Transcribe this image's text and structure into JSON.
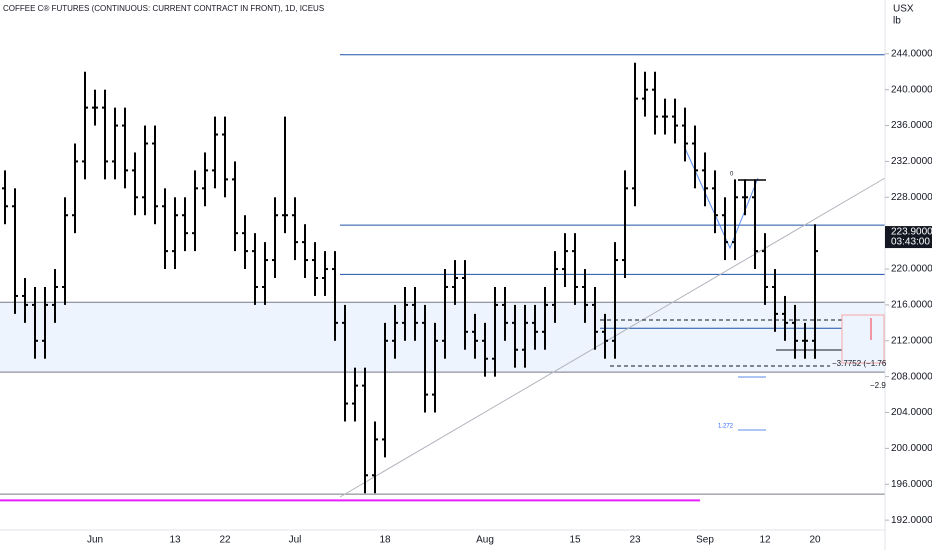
{
  "chart_data": {
    "type": "ohlc",
    "title": "COFFEE C® FUTURES (CONTINUOUS: CURRENT CONTRACT IN FRONT), 1D, ICEUS",
    "unit_top": "USX",
    "unit_bottom": "lb",
    "categories": [
      null,
      null,
      null,
      null,
      null,
      null,
      null,
      null,
      null,
      "Jun",
      null,
      null,
      null,
      null,
      null,
      null,
      null,
      "13",
      null,
      null,
      null,
      null,
      "22",
      null,
      null,
      null,
      null,
      null,
      null,
      "Jul",
      null,
      null,
      null,
      null,
      null,
      null,
      null,
      null,
      "18",
      null,
      null,
      null,
      null,
      null,
      null,
      null,
      null,
      null,
      "Aug",
      null,
      null,
      null,
      null,
      null,
      null,
      null,
      null,
      "15",
      null,
      null,
      null,
      null,
      null,
      "23",
      null,
      null,
      null,
      null,
      null,
      null,
      "Sep",
      null,
      null,
      null,
      null,
      null,
      "12",
      null,
      null,
      null,
      null,
      "20"
    ],
    "open": [
      229,
      227,
      217,
      216,
      212,
      216,
      218,
      226,
      232,
      238,
      238,
      232,
      236,
      231,
      228,
      234,
      227,
      222,
      226,
      224,
      229,
      231,
      235,
      230,
      224,
      222,
      218,
      221,
      226,
      226,
      223,
      221,
      219,
      220,
      214,
      205,
      207,
      197,
      201,
      212,
      214,
      216,
      214,
      206,
      212,
      218,
      219,
      213,
      212,
      210,
      216,
      214,
      211,
      214,
      213,
      216,
      220,
      222,
      218,
      216,
      213,
      212,
      221,
      229,
      239,
      240,
      237,
      237,
      236,
      234,
      231,
      229,
      226,
      223,
      228,
      228,
      222,
      218,
      215,
      214,
      212,
      212
    ],
    "high": [
      231,
      229,
      219,
      218,
      218,
      220,
      228,
      234,
      242,
      240,
      240,
      238,
      238,
      233,
      236,
      236,
      229,
      228,
      228,
      231,
      233,
      237,
      237,
      232,
      226,
      224,
      223,
      228,
      237,
      228,
      225,
      223,
      222,
      222,
      216,
      209,
      209,
      203,
      214,
      216,
      218,
      218,
      216,
      214,
      220,
      221,
      221,
      215,
      214,
      218,
      218,
      216,
      216,
      216,
      218,
      222,
      224,
      224,
      220,
      218,
      215,
      223,
      231,
      243,
      242,
      242,
      239,
      239,
      238,
      236,
      233,
      231,
      228,
      230,
      230,
      230,
      224,
      220,
      217,
      216,
      214,
      225
    ],
    "low": [
      225,
      215,
      214,
      210,
      210,
      214,
      216,
      224,
      230,
      236,
      230,
      230,
      229,
      226,
      226,
      225,
      220,
      220,
      222,
      222,
      227,
      229,
      228,
      222,
      220,
      216,
      216,
      219,
      224,
      221,
      219,
      217,
      217,
      212,
      203,
      203,
      195,
      195,
      199,
      210,
      212,
      212,
      204,
      204,
      210,
      216,
      211,
      210,
      208,
      208,
      212,
      209,
      209,
      211,
      211,
      214,
      218,
      216,
      214,
      211,
      210,
      210,
      219,
      227,
      237,
      235,
      235,
      234,
      232,
      229,
      227,
      224,
      221,
      221,
      226,
      220,
      216,
      213,
      212,
      210,
      210,
      210
    ],
    "close": [
      227,
      217,
      216,
      212,
      216,
      218,
      226,
      232,
      238,
      238,
      232,
      236,
      231,
      228,
      234,
      227,
      222,
      226,
      224,
      229,
      231,
      235,
      230,
      224,
      222,
      218,
      221,
      226,
      226,
      223,
      221,
      219,
      220,
      214,
      205,
      207,
      197,
      201,
      212,
      214,
      216,
      214,
      206,
      212,
      218,
      219,
      213,
      212,
      210,
      216,
      214,
      211,
      214,
      213,
      216,
      220,
      222,
      218,
      216,
      213,
      212,
      221,
      229,
      239,
      240,
      237,
      237,
      236,
      234,
      231,
      229,
      226,
      223,
      228,
      228,
      222,
      218,
      215,
      214,
      212,
      212,
      222
    ],
    "color": "#000000",
    "ylim": [
      190.9,
      250
    ],
    "yticks": [
      {
        "value": 192,
        "label": "192.0000"
      },
      {
        "value": 196,
        "label": "196.0000"
      },
      {
        "value": 200,
        "label": "200.0000"
      },
      {
        "value": 204,
        "label": "204.0000"
      },
      {
        "value": 208,
        "label": "208.0000"
      },
      {
        "value": 212,
        "label": "212.0000"
      },
      {
        "value": 216,
        "label": "216.0000"
      },
      {
        "value": 220,
        "label": "220.0000"
      },
      {
        "value": 224,
        "label": "224.0000"
      },
      {
        "value": 228,
        "label": "228.0000"
      },
      {
        "value": 232,
        "label": "232.0000"
      },
      {
        "value": 236,
        "label": "236.0000"
      },
      {
        "value": 240,
        "label": "240.0000"
      },
      {
        "value": 244,
        "label": "244.0000"
      }
    ],
    "blue_levels": [
      243.9,
      224.9,
      219.4,
      213.4
    ],
    "blue_color": "#1e53a8",
    "gray_levels": [
      216.3,
      208.5,
      194.9
    ],
    "gray_color": "#787b86",
    "zone": [
      208.5,
      216.3
    ],
    "zone_color": "#eef4fd",
    "pink_level": 194.2,
    "pink_color": "#e91eff",
    "last_price": {
      "value": 223.9,
      "label": "223.9000"
    },
    "countdown": "03:43:00",
    "annotations": [
      "−3.7752 (−1.76",
      "−2.9",
      "1.272",
      "0"
    ]
  }
}
